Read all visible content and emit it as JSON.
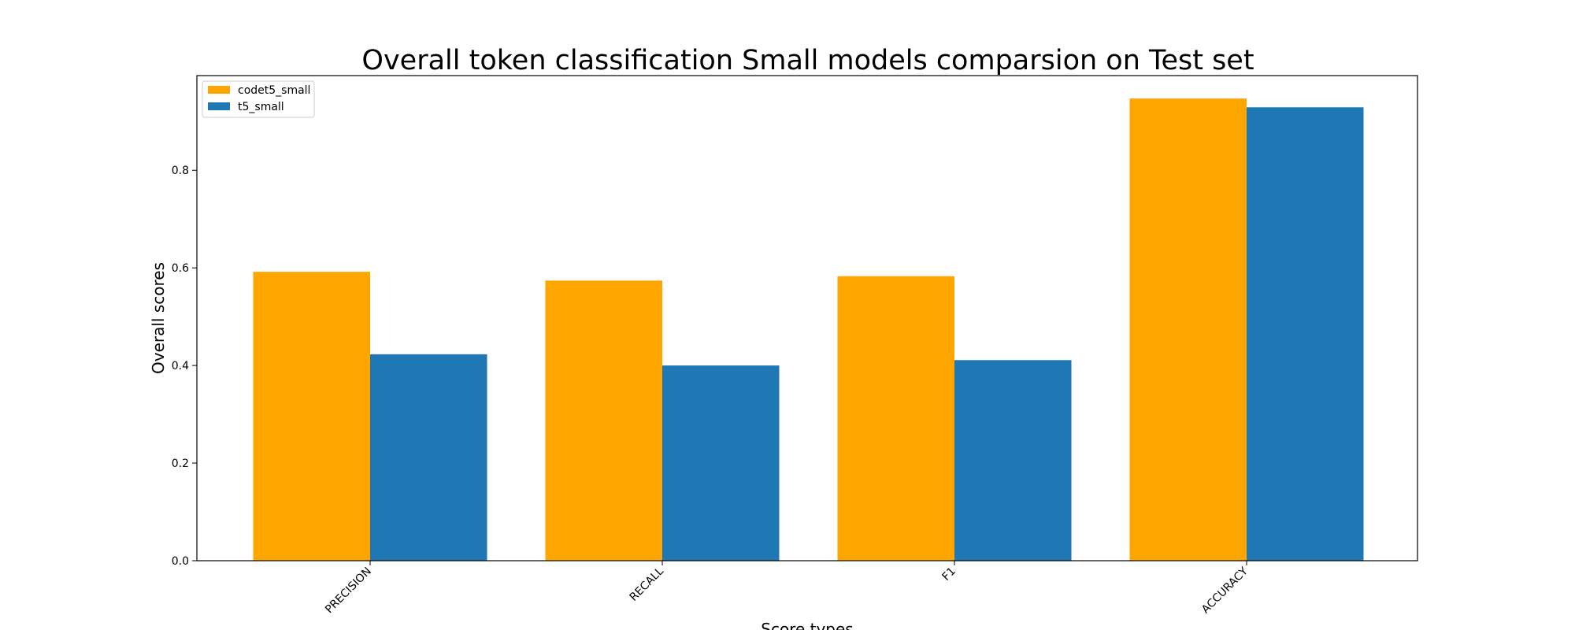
{
  "chart_data": {
    "type": "bar",
    "title": "Overall token classification Small models comparsion on Test set",
    "xlabel": "Score types",
    "ylabel": "Overall scores",
    "categories": [
      "PRECISION",
      "RECALL",
      "F1",
      "ACCURACY"
    ],
    "series": [
      {
        "name": "codet5_small",
        "color": "#ffa500",
        "values": [
          0.592,
          0.574,
          0.583,
          0.947
        ]
      },
      {
        "name": "t5_small",
        "color": "#1f77b4",
        "values": [
          0.423,
          0.4,
          0.411,
          0.929
        ]
      }
    ],
    "ylim": [
      0,
      0.994
    ],
    "yticks": [
      "0.0",
      "0.2",
      "0.4",
      "0.6",
      "0.8"
    ],
    "grid": false,
    "legend_position": "top-left"
  }
}
